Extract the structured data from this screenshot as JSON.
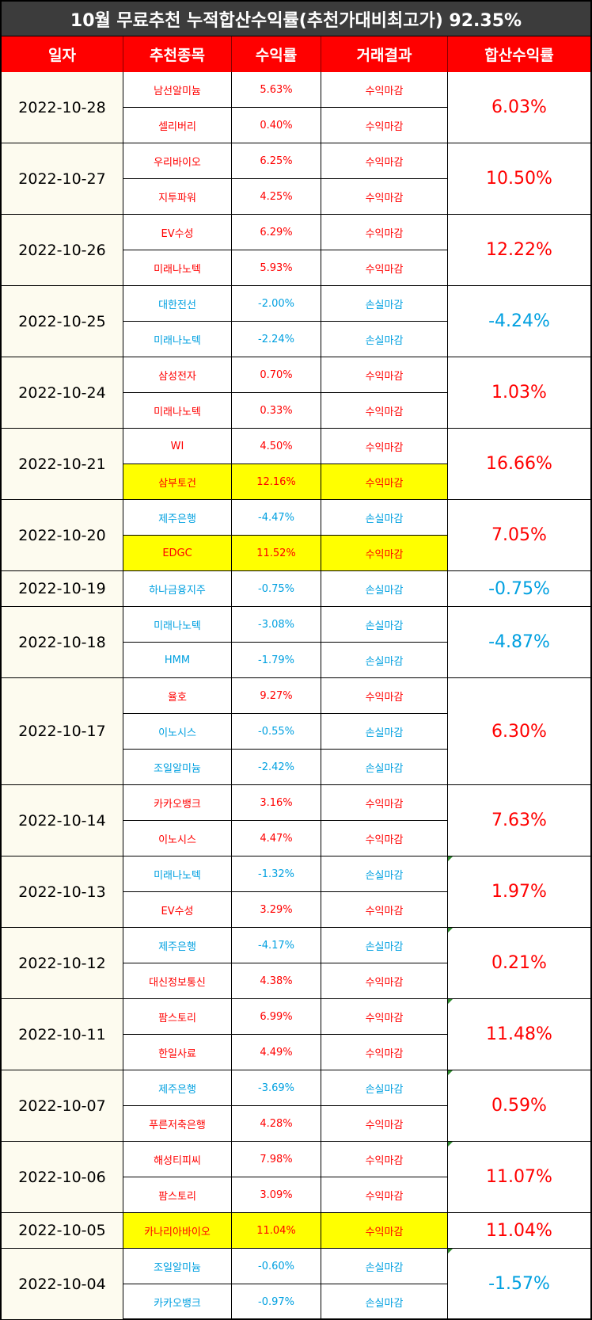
{
  "title": "10월 무료추천 누적합산수익률(추천가대비최고가) 92.35%",
  "headers": [
    "일자",
    "추천종목",
    "수익률",
    "거래결과",
    "합산수익률"
  ],
  "colors": {
    "title_bg": "#3c3c3c",
    "header_bg": "#ff0000",
    "profit": "#ff0000",
    "loss": "#00a0e0",
    "highlight": "#ffff00",
    "date_bg": "#fdfbef"
  },
  "groups": [
    {
      "date": "2022-10-28",
      "sum": "6.03%",
      "sum_type": "profit",
      "items": [
        {
          "name": "남선알미늄",
          "rate": "5.63%",
          "result": "수익마감",
          "type": "profit"
        },
        {
          "name": "셀리버리",
          "rate": "0.40%",
          "result": "수익마감",
          "type": "profit"
        }
      ]
    },
    {
      "date": "2022-10-27",
      "sum": "10.50%",
      "sum_type": "profit",
      "items": [
        {
          "name": "우리바이오",
          "rate": "6.25%",
          "result": "수익마감",
          "type": "profit"
        },
        {
          "name": "지투파워",
          "rate": "4.25%",
          "result": "수익마감",
          "type": "profit"
        }
      ]
    },
    {
      "date": "2022-10-26",
      "sum": "12.22%",
      "sum_type": "profit",
      "items": [
        {
          "name": "EV수성",
          "rate": "6.29%",
          "result": "수익마감",
          "type": "profit"
        },
        {
          "name": "미래나노텍",
          "rate": "5.93%",
          "result": "수익마감",
          "type": "profit"
        }
      ]
    },
    {
      "date": "2022-10-25",
      "sum": "-4.24%",
      "sum_type": "loss",
      "items": [
        {
          "name": "대한전선",
          "rate": "-2.00%",
          "result": "손실마감",
          "type": "loss"
        },
        {
          "name": "미래나노텍",
          "rate": "-2.24%",
          "result": "손실마감",
          "type": "loss"
        }
      ]
    },
    {
      "date": "2022-10-24",
      "sum": "1.03%",
      "sum_type": "profit",
      "items": [
        {
          "name": "삼성전자",
          "rate": "0.70%",
          "result": "수익마감",
          "type": "profit"
        },
        {
          "name": "미래나노텍",
          "rate": "0.33%",
          "result": "수익마감",
          "type": "profit"
        }
      ]
    },
    {
      "date": "2022-10-21",
      "sum": "16.66%",
      "sum_type": "profit",
      "items": [
        {
          "name": "WI",
          "rate": "4.50%",
          "result": "수익마감",
          "type": "profit"
        },
        {
          "name": "삼부토건",
          "rate": "12.16%",
          "result": "수익마감",
          "type": "profit",
          "highlight": true
        }
      ]
    },
    {
      "date": "2022-10-20",
      "sum": "7.05%",
      "sum_type": "profit",
      "items": [
        {
          "name": "제주은행",
          "rate": "-4.47%",
          "result": "손실마감",
          "type": "loss"
        },
        {
          "name": "EDGC",
          "rate": "11.52%",
          "result": "수익마감",
          "type": "profit",
          "highlight": true
        }
      ]
    },
    {
      "date": "2022-10-19",
      "sum": "-0.75%",
      "sum_type": "loss",
      "items": [
        {
          "name": "하나금융지주",
          "rate": "-0.75%",
          "result": "손실마감",
          "type": "loss"
        }
      ]
    },
    {
      "date": "2022-10-18",
      "sum": "-4.87%",
      "sum_type": "loss",
      "items": [
        {
          "name": "미래나노텍",
          "rate": "-3.08%",
          "result": "손실마감",
          "type": "loss"
        },
        {
          "name": "HMM",
          "rate": "-1.79%",
          "result": "손실마감",
          "type": "loss"
        }
      ]
    },
    {
      "date": "2022-10-17",
      "sum": "6.30%",
      "sum_type": "profit",
      "items": [
        {
          "name": "율호",
          "rate": "9.27%",
          "result": "수익마감",
          "type": "profit"
        },
        {
          "name": "이노시스",
          "rate": "-0.55%",
          "result": "손실마감",
          "type": "loss"
        },
        {
          "name": "조일알미늄",
          "rate": "-2.42%",
          "result": "손실마감",
          "type": "loss"
        }
      ]
    },
    {
      "date": "2022-10-14",
      "sum": "7.63%",
      "sum_type": "profit",
      "items": [
        {
          "name": "카카오뱅크",
          "rate": "3.16%",
          "result": "수익마감",
          "type": "profit"
        },
        {
          "name": "이노시스",
          "rate": "4.47%",
          "result": "수익마감",
          "type": "profit"
        }
      ]
    },
    {
      "date": "2022-10-13",
      "sum": "1.97%",
      "sum_type": "profit",
      "corner": true,
      "items": [
        {
          "name": "미래나노텍",
          "rate": "-1.32%",
          "result": "손실마감",
          "type": "loss"
        },
        {
          "name": "EV수성",
          "rate": "3.29%",
          "result": "수익마감",
          "type": "profit"
        }
      ]
    },
    {
      "date": "2022-10-12",
      "sum": "0.21%",
      "sum_type": "profit",
      "corner": true,
      "items": [
        {
          "name": "제주은행",
          "rate": "-4.17%",
          "result": "손실마감",
          "type": "loss"
        },
        {
          "name": "대신정보통신",
          "rate": "4.38%",
          "result": "수익마감",
          "type": "profit"
        }
      ]
    },
    {
      "date": "2022-10-11",
      "sum": "11.48%",
      "sum_type": "profit",
      "corner": true,
      "items": [
        {
          "name": "팜스토리",
          "rate": "6.99%",
          "result": "수익마감",
          "type": "profit"
        },
        {
          "name": "한일사료",
          "rate": "4.49%",
          "result": "수익마감",
          "type": "profit"
        }
      ]
    },
    {
      "date": "2022-10-07",
      "sum": "0.59%",
      "sum_type": "profit",
      "corner": true,
      "items": [
        {
          "name": "제주은행",
          "rate": "-3.69%",
          "result": "손실마감",
          "type": "loss"
        },
        {
          "name": "푸른저축은행",
          "rate": "4.28%",
          "result": "수익마감",
          "type": "profit"
        }
      ]
    },
    {
      "date": "2022-10-06",
      "sum": "11.07%",
      "sum_type": "profit",
      "corner": true,
      "items": [
        {
          "name": "해성티피씨",
          "rate": "7.98%",
          "result": "수익마감",
          "type": "profit"
        },
        {
          "name": "팜스토리",
          "rate": "3.09%",
          "result": "수익마감",
          "type": "profit"
        }
      ]
    },
    {
      "date": "2022-10-05",
      "sum": "11.04%",
      "sum_type": "profit",
      "items": [
        {
          "name": "카나리아바이오",
          "rate": "11.04%",
          "result": "수익마감",
          "type": "profit",
          "highlight": true
        }
      ]
    },
    {
      "date": "2022-10-04",
      "sum": "-1.57%",
      "sum_type": "loss",
      "corner": true,
      "items": [
        {
          "name": "조일알미늄",
          "rate": "-0.60%",
          "result": "손실마감",
          "type": "loss"
        },
        {
          "name": "카카오뱅크",
          "rate": "-0.97%",
          "result": "손실마감",
          "type": "loss"
        }
      ]
    }
  ]
}
